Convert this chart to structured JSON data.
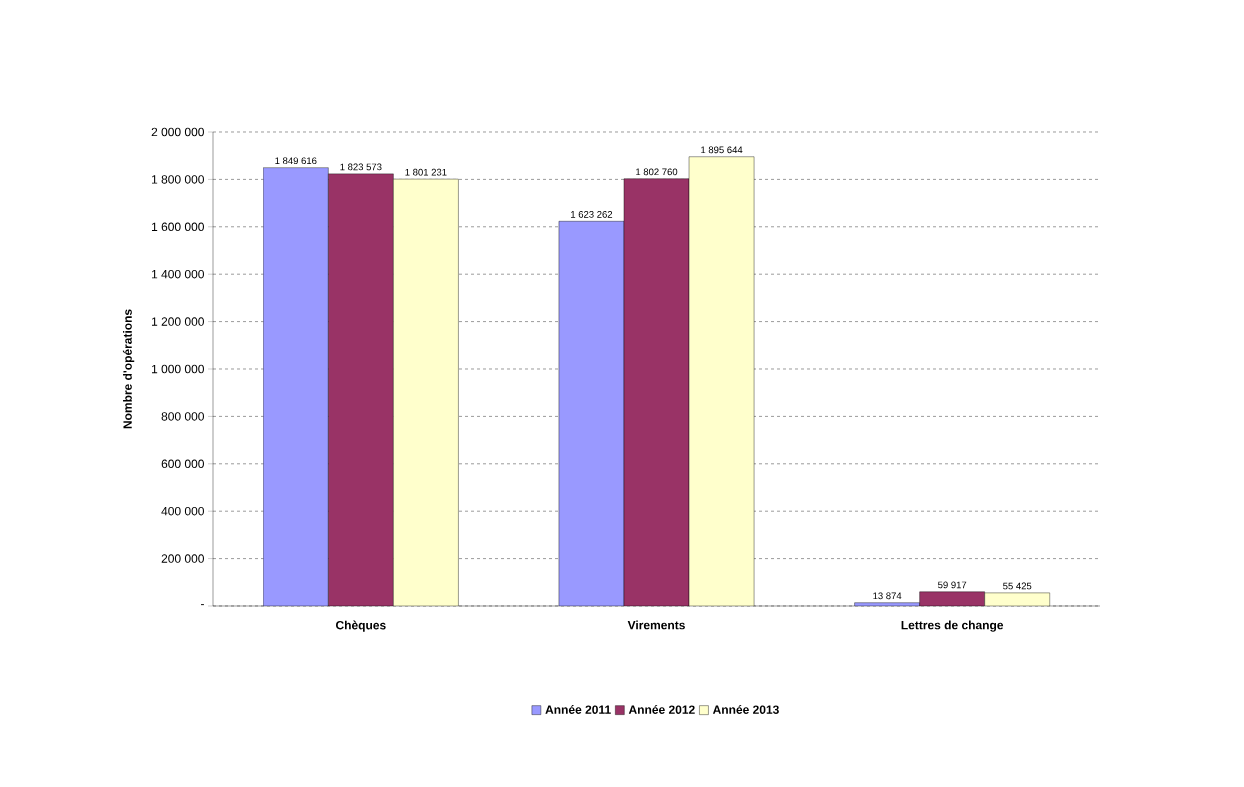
{
  "chart_data": {
    "type": "bar",
    "ylabel": "Nombre d'opérations",
    "categories": [
      "Chèques",
      "Virements",
      "Lettres de change"
    ],
    "series": [
      {
        "name": "Année 2011",
        "color": "#9999ff",
        "values": [
          1849616,
          1623262,
          13874
        ],
        "value_labels": [
          "1 849 616",
          "1 623 262",
          "13 874"
        ]
      },
      {
        "name": "Année 2012",
        "color": "#993366",
        "values": [
          1823573,
          1802760,
          59917
        ],
        "value_labels": [
          "1 823 573",
          "1 802 760",
          "59 917"
        ]
      },
      {
        "name": "Année 2013",
        "color": "#ffffcc",
        "values": [
          1801231,
          1895644,
          55425
        ],
        "value_labels": [
          "1 801 231",
          "1 895 644",
          "55 425"
        ]
      }
    ],
    "ylim": [
      0,
      2000000
    ],
    "yticks": [
      {
        "value": 0,
        "label": "-"
      },
      {
        "value": 200000,
        "label": "200 000"
      },
      {
        "value": 400000,
        "label": "400 000"
      },
      {
        "value": 600000,
        "label": "600 000"
      },
      {
        "value": 800000,
        "label": "800 000"
      },
      {
        "value": 1000000,
        "label": "1 000 000"
      },
      {
        "value": 1200000,
        "label": "1 200 000"
      },
      {
        "value": 1400000,
        "label": "1 400 000"
      },
      {
        "value": 1600000,
        "label": "1 600 000"
      },
      {
        "value": 1800000,
        "label": "1 800 000"
      },
      {
        "value": 2000000,
        "label": "2 000 000"
      }
    ],
    "grid": "y",
    "legend": "bottom"
  }
}
